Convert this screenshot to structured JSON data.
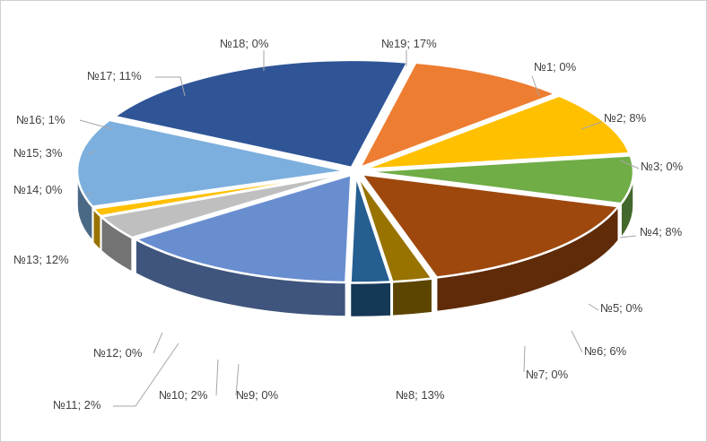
{
  "chart_data": {
    "type": "pie",
    "style": "3d-exploded",
    "title": "",
    "legend": "none",
    "slices": [
      {
        "label": "№1; 0%",
        "name": "№1",
        "value": 0,
        "color": "#ED7D31"
      },
      {
        "label": "№2; 8%",
        "name": "№2",
        "value": 8,
        "color": "#ED7D31"
      },
      {
        "label": "№3; 0%",
        "name": "№3",
        "value": 0,
        "color": "#FFC000"
      },
      {
        "label": "№4; 8%",
        "name": "№4",
        "value": 8,
        "color": "#FFC000"
      },
      {
        "label": "№5; 0%",
        "name": "№5",
        "value": 0,
        "color": "#70AD47"
      },
      {
        "label": "№6; 6%",
        "name": "№6",
        "value": 6,
        "color": "#70AD47"
      },
      {
        "label": "№7; 0%",
        "name": "№7",
        "value": 0,
        "color": "#9E480E"
      },
      {
        "label": "№8; 13%",
        "name": "№8",
        "value": 13,
        "color": "#9E480E"
      },
      {
        "label": "№9; 0%",
        "name": "№9",
        "value": 0,
        "color": "#997300"
      },
      {
        "label": "№10; 2%",
        "name": "№10",
        "value": 2,
        "color": "#997300"
      },
      {
        "label": "№11; 2%",
        "name": "№11",
        "value": 2,
        "color": "#255E91"
      },
      {
        "label": "№12; 0%",
        "name": "№12",
        "value": 0,
        "color": "#43682B"
      },
      {
        "label": "№13; 12%",
        "name": "№13",
        "value": 12,
        "color": "#698ED0"
      },
      {
        "label": "№14; 0%",
        "name": "№14",
        "value": 0,
        "color": "#698ED0"
      },
      {
        "label": "№15; 3%",
        "name": "№15",
        "value": 3,
        "color": "#BFBFBF"
      },
      {
        "label": "№16; 1%",
        "name": "№16",
        "value": 1,
        "color": "#FFC000"
      },
      {
        "label": "№17; 11%",
        "name": "№17",
        "value": 11,
        "color": "#7CAFDD"
      },
      {
        "label": "№18; 0%",
        "name": "№18",
        "value": 0,
        "color": "#4472C4"
      },
      {
        "label": "№19; 17%",
        "name": "№19",
        "value": 17,
        "color": "#2F5597"
      }
    ]
  }
}
